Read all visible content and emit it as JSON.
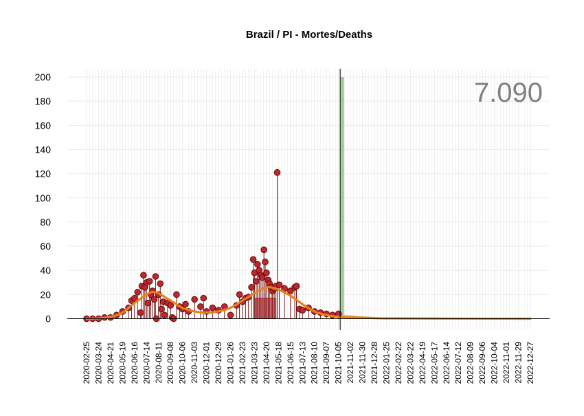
{
  "chart_data": {
    "type": "line",
    "title": "Brazil / PI - Mortes/Deaths",
    "xlabel": "",
    "ylabel": "",
    "ylim": [
      0,
      200
    ],
    "y_ticks": [
      0,
      20,
      40,
      60,
      80,
      100,
      120,
      140,
      160,
      180,
      200
    ],
    "grid": true,
    "legend": "none",
    "total_label": "7.090",
    "x_tick_labels": [
      "2020-02-25",
      "2020-03-24",
      "2020-04-21",
      "2020-05-19",
      "2020-06-16",
      "2020-07-14",
      "2020-08-11",
      "2020-09-08",
      "2020-10-06",
      "2020-11-03",
      "2020-12-01",
      "2020-12-29",
      "2021-01-26",
      "2021-02-23",
      "2021-03-23",
      "2021-04-20",
      "2021-05-18",
      "2021-06-15",
      "2021-07-13",
      "2021-08-10",
      "2021-09-07",
      "2021-10-05",
      "2021-11-02",
      "2021-11-30",
      "2021-12-28",
      "2022-01-25",
      "2022-02-22",
      "2022-03-22",
      "2022-04-19",
      "2022-05-17",
      "2022-06-14",
      "2022-07-12",
      "2022-08-09",
      "2022-09-06",
      "2022-10-04",
      "2022-11-01",
      "2022-11-29",
      "2022-12-27"
    ],
    "current_date": "2021-10-09",
    "highlight_bar": {
      "date": "2021-10-14",
      "value": 200
    },
    "rect_marks": [
      {
        "x_start": "2021-03-25",
        "x_end": "2021-05-12",
        "value": 17
      }
    ],
    "series": [
      {
        "type": "scatter",
        "points": [
          [
            "2020-02-25",
            0
          ],
          [
            "2020-03-10",
            0
          ],
          [
            "2020-03-24",
            0
          ],
          [
            "2020-04-07",
            1
          ],
          [
            "2020-04-21",
            1
          ],
          [
            "2020-05-05",
            3
          ],
          [
            "2020-05-19",
            6
          ],
          [
            "2020-06-02",
            9
          ],
          [
            "2020-06-09",
            15
          ],
          [
            "2020-06-16",
            17
          ],
          [
            "2020-06-23",
            22
          ],
          [
            "2020-06-30",
            5
          ],
          [
            "2020-07-03",
            27
          ],
          [
            "2020-07-07",
            36
          ],
          [
            "2020-07-10",
            26
          ],
          [
            "2020-07-14",
            30
          ],
          [
            "2020-07-17",
            13
          ],
          [
            "2020-07-21",
            31
          ],
          [
            "2020-07-24",
            20
          ],
          [
            "2020-07-28",
            23
          ],
          [
            "2020-08-01",
            16
          ],
          [
            "2020-08-04",
            35
          ],
          [
            "2020-08-06",
            0
          ],
          [
            "2020-08-11",
            20
          ],
          [
            "2020-08-15",
            29
          ],
          [
            "2020-08-18",
            8
          ],
          [
            "2020-08-22",
            14
          ],
          [
            "2020-08-25",
            3
          ],
          [
            "2020-09-01",
            13
          ],
          [
            "2020-09-08",
            11
          ],
          [
            "2020-09-12",
            1
          ],
          [
            "2020-09-15",
            0
          ],
          [
            "2020-09-22",
            20
          ],
          [
            "2020-09-29",
            10
          ],
          [
            "2020-10-06",
            8
          ],
          [
            "2020-10-13",
            12
          ],
          [
            "2020-10-20",
            6
          ],
          [
            "2020-11-03",
            16
          ],
          [
            "2020-11-17",
            10
          ],
          [
            "2020-11-24",
            17
          ],
          [
            "2020-12-01",
            6
          ],
          [
            "2020-12-15",
            9
          ],
          [
            "2020-12-29",
            7
          ],
          [
            "2021-01-12",
            10
          ],
          [
            "2021-01-26",
            3
          ],
          [
            "2021-02-09",
            11
          ],
          [
            "2021-02-16",
            20
          ],
          [
            "2021-02-23",
            14
          ],
          [
            "2021-03-02",
            17
          ],
          [
            "2021-03-09",
            18
          ],
          [
            "2021-03-16",
            26
          ],
          [
            "2021-03-20",
            49
          ],
          [
            "2021-03-23",
            38
          ],
          [
            "2021-03-27",
            31
          ],
          [
            "2021-03-30",
            45
          ],
          [
            "2021-04-03",
            40
          ],
          [
            "2021-04-07",
            36
          ],
          [
            "2021-04-10",
            34
          ],
          [
            "2021-04-14",
            57
          ],
          [
            "2021-04-17",
            47
          ],
          [
            "2021-04-20",
            38
          ],
          [
            "2021-04-24",
            32
          ],
          [
            "2021-04-27",
            29
          ],
          [
            "2021-05-01",
            26
          ],
          [
            "2021-05-04",
            23
          ],
          [
            "2021-05-08",
            25
          ],
          [
            "2021-05-12",
            27
          ],
          [
            "2021-05-15",
            121
          ],
          [
            "2021-05-20",
            28
          ],
          [
            "2021-06-01",
            25
          ],
          [
            "2021-06-15",
            23
          ],
          [
            "2021-06-25",
            26
          ],
          [
            "2021-06-29",
            27
          ],
          [
            "2021-07-06",
            8
          ],
          [
            "2021-07-13",
            7
          ],
          [
            "2021-07-27",
            9
          ],
          [
            "2021-08-10",
            6
          ],
          [
            "2021-08-24",
            5
          ],
          [
            "2021-09-07",
            4
          ],
          [
            "2021-09-21",
            3
          ],
          [
            "2021-10-05",
            4
          ]
        ]
      },
      {
        "type": "line",
        "points": [
          [
            "2020-02-25",
            0
          ],
          [
            "2020-03-24",
            0.3
          ],
          [
            "2020-04-21",
            1.5
          ],
          [
            "2020-05-19",
            5
          ],
          [
            "2020-06-16",
            13
          ],
          [
            "2020-07-14",
            20
          ],
          [
            "2020-07-28",
            22
          ],
          [
            "2020-08-11",
            21
          ],
          [
            "2020-09-08",
            15
          ],
          [
            "2020-10-06",
            9
          ],
          [
            "2020-11-03",
            6
          ],
          [
            "2020-12-01",
            5
          ],
          [
            "2020-12-29",
            6
          ],
          [
            "2021-01-26",
            9
          ],
          [
            "2021-02-23",
            15
          ],
          [
            "2021-03-23",
            21
          ],
          [
            "2021-04-20",
            26
          ],
          [
            "2021-05-18",
            24
          ],
          [
            "2021-06-15",
            19
          ],
          [
            "2021-07-13",
            12
          ],
          [
            "2021-08-10",
            6
          ],
          [
            "2021-09-07",
            3
          ],
          [
            "2021-10-05",
            1.6
          ],
          [
            "2021-11-02",
            1.2
          ],
          [
            "2021-12-28",
            0.5
          ],
          [
            "2022-01-25",
            0.3
          ],
          [
            "2022-06-14",
            0.1
          ],
          [
            "2022-12-27",
            0
          ]
        ]
      },
      {
        "type": "area",
        "points": [
          [
            "2021-10-05",
            4
          ],
          [
            "2021-11-02",
            3
          ],
          [
            "2021-11-30",
            2
          ],
          [
            "2021-12-28",
            1.5
          ],
          [
            "2022-01-25",
            1
          ],
          [
            "2022-02-22",
            0.6
          ],
          [
            "2022-06-14",
            0.3
          ],
          [
            "2022-12-27",
            0.1
          ]
        ]
      }
    ],
    "colors": {
      "title": "#000000",
      "grid": "#ebebeb",
      "point_fill": "#c0272d",
      "point_stroke": "#5a0a0a",
      "stem": "#7a1a1a",
      "smooth_line": "#e8801e",
      "rect_fill": "#d9747c",
      "rect_stroke": "#b3343c",
      "highlight_bar": "#9ccf91",
      "projection_area": "#cfcfcf",
      "total_label": "#808080",
      "axis": "#000000"
    }
  }
}
